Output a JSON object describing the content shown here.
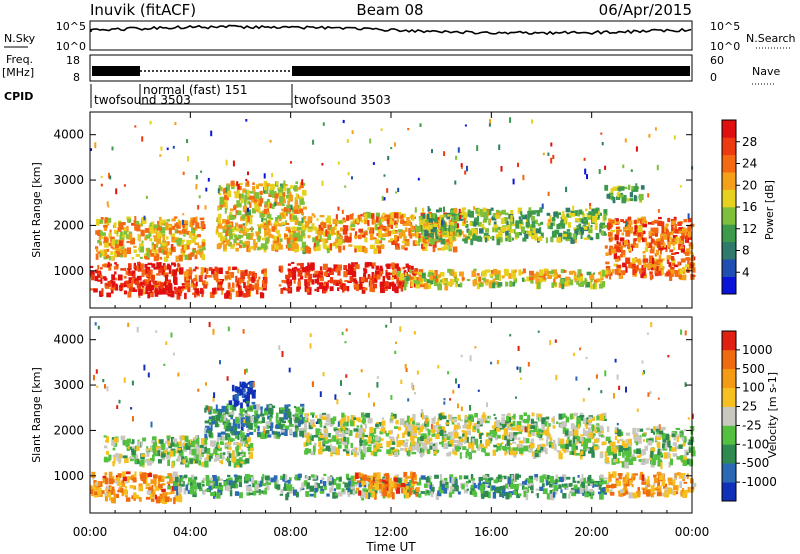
{
  "header": {
    "station": "Inuvik (fitACF)",
    "beam": "Beam 08",
    "date": "06/Apr/2015"
  },
  "top_panels": {
    "nsky": {
      "left_label": "N.Sky",
      "right_label": "N.Search",
      "left_ticks": [
        "10^5",
        "10^0"
      ],
      "right_ticks": [
        "10^5",
        "10^0"
      ]
    },
    "freq": {
      "left_label_1": "Freq.",
      "left_label_2": "[MHz]",
      "right_label": "Nave",
      "left_ticks": [
        "18",
        "8"
      ],
      "right_ticks": [
        "60",
        "0"
      ]
    },
    "cpid": {
      "label": "CPID",
      "segments": [
        {
          "label": "twofsound 3503",
          "start_hour": 0,
          "end_hour": 2
        },
        {
          "label": "normal (fast) 151",
          "start_hour": 2,
          "end_hour": 8
        },
        {
          "label": "twofsound 3503",
          "start_hour": 8,
          "end_hour": 24
        }
      ]
    }
  },
  "chart_data": [
    {
      "type": "heatmap",
      "quantity": "Power",
      "ylabel": "Slant Range [km]",
      "xlim": [
        0,
        24
      ],
      "ylim": [
        180,
        4500
      ],
      "yticks": [
        1000,
        2000,
        3000,
        4000
      ],
      "colorbar": {
        "label": "Power [dB]",
        "ticks": [
          "28",
          "24",
          "20",
          "16",
          "12",
          "8",
          "4"
        ],
        "colors": [
          "#0a14d8",
          "#1f4fb0",
          "#2f7a6a",
          "#3c9a4a",
          "#7ec03a",
          "#e6d21e",
          "#f5a01a",
          "#f46a12",
          "#ee3a10",
          "#e01010"
        ]
      },
      "bands": [
        {
          "start_hour": 0.0,
          "end_hour": 3.5,
          "range_lo": 500,
          "range_hi": 1200,
          "level": 0.88
        },
        {
          "start_hour": 0.2,
          "end_hour": 4.5,
          "range_lo": 1300,
          "range_hi": 2200,
          "level": 0.62
        },
        {
          "start_hour": 3.5,
          "end_hour": 7.0,
          "range_lo": 500,
          "range_hi": 1100,
          "level": 0.82
        },
        {
          "start_hour": 5.0,
          "end_hour": 8.5,
          "range_lo": 1500,
          "range_hi": 3000,
          "level": 0.58
        },
        {
          "start_hour": 7.5,
          "end_hour": 13.0,
          "range_lo": 600,
          "range_hi": 1200,
          "level": 0.9
        },
        {
          "start_hour": 8.5,
          "end_hour": 14.5,
          "range_lo": 1500,
          "range_hi": 2300,
          "level": 0.66
        },
        {
          "start_hour": 12.0,
          "end_hour": 20.5,
          "range_lo": 700,
          "range_hi": 1050,
          "level": 0.55
        },
        {
          "start_hour": 13.0,
          "end_hour": 20.5,
          "range_lo": 1700,
          "range_hi": 2400,
          "level": 0.42
        },
        {
          "start_hour": 20.5,
          "end_hour": 24.0,
          "range_lo": 900,
          "range_hi": 2200,
          "level": 0.76
        },
        {
          "start_hour": 20.5,
          "end_hour": 22.0,
          "range_lo": 2600,
          "range_hi": 2900,
          "level": 0.4
        }
      ]
    },
    {
      "type": "heatmap",
      "quantity": "Velocity",
      "ylabel": "Slant Range [km]",
      "xlabel": "Time UT",
      "xlim": [
        0,
        24
      ],
      "ylim": [
        180,
        4500
      ],
      "yticks": [
        1000,
        2000,
        3000,
        4000
      ],
      "xtick_labels": [
        "00:00",
        "04:00",
        "08:00",
        "12:00",
        "16:00",
        "20:00",
        "00:00"
      ],
      "xticks": [
        0,
        4,
        8,
        12,
        16,
        20,
        24
      ],
      "colorbar": {
        "label": "Velocity [m s-1]",
        "ticks": [
          "1000",
          "500",
          "100",
          "25",
          "-25",
          "-100",
          "-500",
          "-1000"
        ],
        "colors": [
          "#1030b8",
          "#2a6ab4",
          "#2f8a50",
          "#54c040",
          "#c8c8c0",
          "#f5c020",
          "#f59a14",
          "#f06a10",
          "#e02010"
        ]
      },
      "bands": [
        {
          "start_hour": 0.0,
          "end_hour": 3.5,
          "range_lo": 500,
          "range_hi": 1100,
          "level": 0.72
        },
        {
          "start_hour": 0.5,
          "end_hour": 6.5,
          "range_lo": 1300,
          "range_hi": 1900,
          "level": 0.45
        },
        {
          "start_hour": 4.5,
          "end_hour": 8.5,
          "range_lo": 1900,
          "range_hi": 2600,
          "level": 0.3
        },
        {
          "start_hour": 5.5,
          "end_hour": 6.5,
          "range_lo": 2600,
          "range_hi": 3100,
          "level": 0.05
        },
        {
          "start_hour": 3.0,
          "end_hour": 20.5,
          "range_lo": 600,
          "range_hi": 1050,
          "level": 0.35
        },
        {
          "start_hour": 10.5,
          "end_hour": 13.0,
          "range_lo": 600,
          "range_hi": 1100,
          "level": 0.78
        },
        {
          "start_hour": 8.5,
          "end_hour": 20.5,
          "range_lo": 1500,
          "range_hi": 2400,
          "level": 0.47
        },
        {
          "start_hour": 20.5,
          "end_hour": 24.0,
          "range_lo": 600,
          "range_hi": 1100,
          "level": 0.7
        },
        {
          "start_hour": 20.5,
          "end_hour": 24.0,
          "range_lo": 1300,
          "range_hi": 2100,
          "level": 0.47
        }
      ]
    }
  ]
}
